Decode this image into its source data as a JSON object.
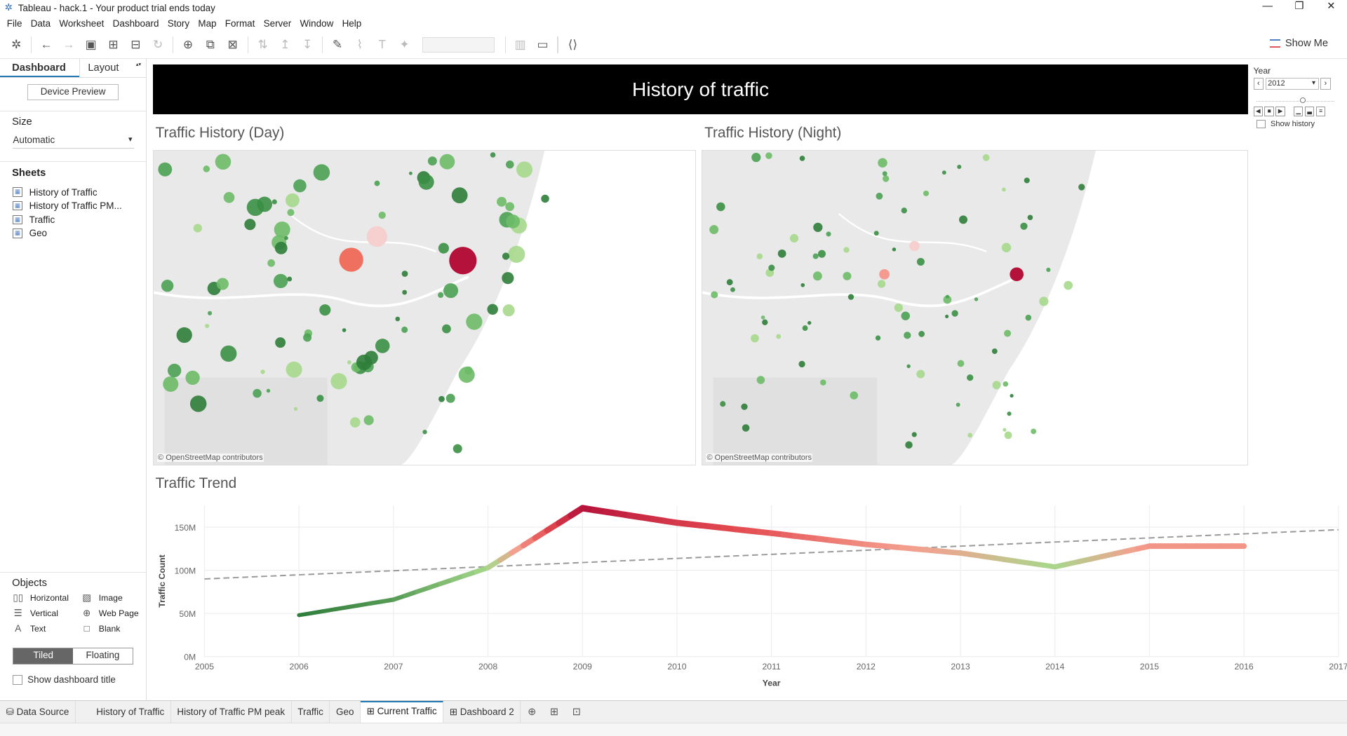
{
  "window": {
    "title": "Tableau - hack.1 - Your product trial ends today",
    "minimize": "—",
    "restore": "❐",
    "close": "✕"
  },
  "menu": [
    "File",
    "Data",
    "Worksheet",
    "Dashboard",
    "Story",
    "Map",
    "Format",
    "Server",
    "Window",
    "Help"
  ],
  "toolbar": {
    "show_me": "Show Me"
  },
  "sidebar": {
    "tab_dashboard": "Dashboard",
    "tab_layout": "Layout",
    "device_preview": "Device Preview",
    "size_heading": "Size",
    "size_value": "Automatic",
    "sheets_heading": "Sheets",
    "sheets": [
      "History of Traffic",
      "History of Traffic PM...",
      "Traffic",
      "Geo"
    ],
    "objects_heading": "Objects",
    "objects": [
      "Horizontal",
      "Image",
      "Vertical",
      "Web Page",
      "Text",
      "Blank"
    ],
    "tiled": "Tiled",
    "floating": "Floating",
    "show_title": "Show dashboard title"
  },
  "dashboard": {
    "banner": "History of traffic",
    "map_day_title": "Traffic History (Day)",
    "map_night_title": "Traffic History (Night)",
    "map_credit": "© OpenStreetMap contributors",
    "trend_title": "Traffic Trend",
    "year_filter": {
      "label": "Year",
      "value": "2012",
      "show_history": "Show history"
    }
  },
  "colors": {
    "low": "#2f7d3a",
    "mid": "#a6d98c",
    "neutral": "#f6d0cf",
    "high": "#b5123b",
    "trendline": "#999999"
  },
  "chart_data": {
    "type": "line",
    "title": "Traffic Trend",
    "xlabel": "Year",
    "ylabel": "Traffic Count",
    "x": [
      2006,
      2007,
      2008,
      2009,
      2010,
      2011,
      2012,
      2013,
      2014,
      2015,
      2016
    ],
    "values": [
      48,
      66,
      103,
      172,
      155,
      143,
      130,
      120,
      104,
      128,
      128
    ],
    "xlim": [
      2005,
      2017
    ],
    "ylim": [
      0,
      175
    ],
    "yticks": [
      "0M",
      "50M",
      "100M",
      "150M"
    ],
    "xticks": [
      "2005",
      "2006",
      "2007",
      "2008",
      "2009",
      "2010",
      "2011",
      "2012",
      "2013",
      "2014",
      "2015",
      "2016",
      "2017"
    ],
    "trend_line": {
      "start": [
        2005,
        90
      ],
      "end": [
        2017,
        147
      ]
    },
    "grid": true
  },
  "tabs": [
    "Data Source",
    "History of Traffic",
    "History of Traffic PM peak",
    "Traffic",
    "Geo",
    "Current Traffic",
    "Dashboard 2"
  ],
  "active_tab": "Current Traffic"
}
